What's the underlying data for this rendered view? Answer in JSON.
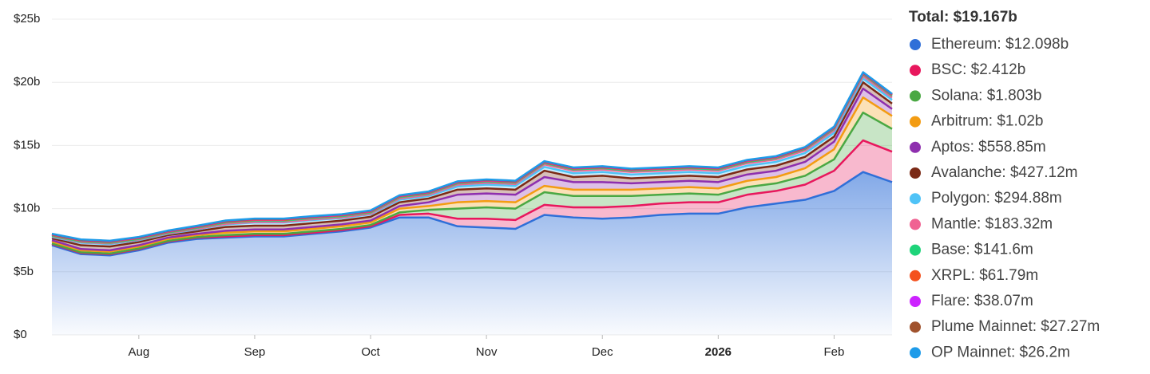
{
  "chart_data": {
    "type": "stacked-area",
    "categories": [
      null,
      null,
      null,
      "Aug",
      null,
      null,
      null,
      "Sep",
      null,
      null,
      null,
      "Oct",
      null,
      null,
      null,
      "Nov",
      null,
      null,
      null,
      "Dec",
      null,
      null,
      null,
      "2026",
      null,
      null,
      null,
      "Feb",
      null,
      null
    ],
    "ylim": [
      0,
      25
    ],
    "yticks": [
      {
        "value": 0,
        "label": "$0"
      },
      {
        "value": 5,
        "label": "$5b"
      },
      {
        "value": 10,
        "label": "$10b"
      },
      {
        "value": 15,
        "label": "$15b"
      },
      {
        "value": 20,
        "label": "$20b"
      },
      {
        "value": 25,
        "label": "$25b"
      }
    ],
    "grid": true,
    "total_label": "Total: $19.167b",
    "series": [
      {
        "name": "Ethereum",
        "legend_label": "$12.098b",
        "color": "#2f6fd8",
        "values": [
          7.1,
          6.4,
          6.3,
          6.7,
          7.3,
          7.6,
          7.7,
          7.8,
          7.8,
          8.0,
          8.2,
          8.5,
          9.3,
          9.3,
          8.6,
          8.5,
          8.4,
          9.5,
          9.3,
          9.2,
          9.3,
          9.5,
          9.6,
          9.6,
          10.1,
          10.4,
          10.7,
          11.4,
          12.9,
          12.098
        ]
      },
      {
        "name": "BSC",
        "legend_label": "$2.412b",
        "color": "#e8175d",
        "values": [
          0.1,
          0.1,
          0.1,
          0.1,
          0.1,
          0.1,
          0.1,
          0.1,
          0.1,
          0.1,
          0.1,
          0.1,
          0.2,
          0.3,
          0.6,
          0.7,
          0.7,
          0.8,
          0.8,
          0.9,
          0.9,
          0.9,
          0.9,
          0.9,
          1.0,
          1.0,
          1.2,
          1.6,
          2.5,
          2.412
        ]
      },
      {
        "name": "Solana",
        "legend_label": "$1.803b",
        "color": "#4aa843",
        "values": [
          0.05,
          0.05,
          0.05,
          0.05,
          0.05,
          0.05,
          0.1,
          0.1,
          0.1,
          0.1,
          0.1,
          0.1,
          0.2,
          0.3,
          0.8,
          0.9,
          0.9,
          1.0,
          0.9,
          0.9,
          0.8,
          0.7,
          0.7,
          0.6,
          0.6,
          0.6,
          0.7,
          0.9,
          2.2,
          1.803
        ]
      },
      {
        "name": "Arbitrum",
        "legend_label": "$1.02b",
        "color": "#f39c12",
        "values": [
          0.15,
          0.15,
          0.15,
          0.15,
          0.15,
          0.15,
          0.2,
          0.2,
          0.2,
          0.2,
          0.2,
          0.2,
          0.3,
          0.3,
          0.5,
          0.5,
          0.5,
          0.5,
          0.5,
          0.5,
          0.5,
          0.5,
          0.5,
          0.5,
          0.5,
          0.5,
          0.6,
          0.8,
          1.2,
          1.02
        ]
      },
      {
        "name": "Aptos",
        "legend_label": "$558.85m",
        "color": "#8e2fae",
        "values": [
          0.1,
          0.1,
          0.1,
          0.1,
          0.1,
          0.1,
          0.15,
          0.15,
          0.15,
          0.15,
          0.15,
          0.15,
          0.2,
          0.3,
          0.6,
          0.6,
          0.6,
          0.7,
          0.6,
          0.6,
          0.5,
          0.5,
          0.5,
          0.5,
          0.5,
          0.5,
          0.5,
          0.6,
          0.7,
          0.55885
        ]
      },
      {
        "name": "Avalanche",
        "legend_label": "$427.12m",
        "color": "#7b2a16",
        "values": [
          0.15,
          0.3,
          0.3,
          0.25,
          0.2,
          0.2,
          0.3,
          0.3,
          0.3,
          0.3,
          0.3,
          0.3,
          0.3,
          0.3,
          0.4,
          0.4,
          0.4,
          0.5,
          0.4,
          0.5,
          0.4,
          0.4,
          0.4,
          0.4,
          0.4,
          0.4,
          0.4,
          0.4,
          0.5,
          0.42712
        ]
      },
      {
        "name": "Polygon",
        "legend_label": "$294.88m",
        "color": "#4fc3f7",
        "values": [
          0.1,
          0.2,
          0.2,
          0.15,
          0.1,
          0.15,
          0.2,
          0.25,
          0.25,
          0.25,
          0.2,
          0.2,
          0.2,
          0.2,
          0.25,
          0.3,
          0.3,
          0.3,
          0.3,
          0.3,
          0.3,
          0.3,
          0.3,
          0.3,
          0.3,
          0.3,
          0.3,
          0.3,
          0.3,
          0.29488
        ]
      },
      {
        "name": "Mantle",
        "legend_label": "$183.32m",
        "color": "#f06292",
        "values": [
          0.05,
          0.05,
          0.05,
          0.05,
          0.05,
          0.05,
          0.05,
          0.05,
          0.05,
          0.05,
          0.05,
          0.05,
          0.1,
          0.1,
          0.15,
          0.15,
          0.15,
          0.2,
          0.2,
          0.2,
          0.2,
          0.2,
          0.2,
          0.2,
          0.2,
          0.2,
          0.2,
          0.2,
          0.2,
          0.18332
        ]
      },
      {
        "name": "Base",
        "legend_label": "$141.6m",
        "color": "#1ed47a",
        "values": [
          0.05,
          0.05,
          0.05,
          0.05,
          0.05,
          0.08,
          0.1,
          0.1,
          0.1,
          0.1,
          0.1,
          0.1,
          0.1,
          0.1,
          0.1,
          0.1,
          0.1,
          0.1,
          0.1,
          0.1,
          0.1,
          0.1,
          0.1,
          0.1,
          0.1,
          0.1,
          0.12,
          0.13,
          0.14,
          0.1416
        ]
      },
      {
        "name": "XRPL",
        "legend_label": "$61.79m",
        "color": "#f4511e",
        "values": [
          0.06,
          0.06,
          0.06,
          0.06,
          0.06,
          0.06,
          0.06,
          0.06,
          0.06,
          0.06,
          0.06,
          0.06,
          0.06,
          0.06,
          0.06,
          0.06,
          0.06,
          0.06,
          0.06,
          0.06,
          0.06,
          0.06,
          0.06,
          0.06,
          0.06,
          0.06,
          0.06,
          0.06,
          0.06,
          0.06179
        ]
      },
      {
        "name": "Flare",
        "legend_label": "$38.07m",
        "color": "#cc22ff",
        "values": [
          0.04,
          0.04,
          0.04,
          0.04,
          0.04,
          0.04,
          0.04,
          0.04,
          0.04,
          0.04,
          0.04,
          0.04,
          0.04,
          0.04,
          0.04,
          0.04,
          0.04,
          0.04,
          0.04,
          0.04,
          0.04,
          0.04,
          0.04,
          0.04,
          0.04,
          0.04,
          0.04,
          0.04,
          0.04,
          0.03807
        ]
      },
      {
        "name": "Plume Mainnet",
        "legend_label": "$27.27m",
        "color": "#a0522d",
        "values": [
          0.03,
          0.03,
          0.03,
          0.03,
          0.03,
          0.03,
          0.03,
          0.03,
          0.03,
          0.03,
          0.03,
          0.03,
          0.03,
          0.03,
          0.03,
          0.03,
          0.03,
          0.03,
          0.03,
          0.03,
          0.03,
          0.03,
          0.03,
          0.03,
          0.03,
          0.03,
          0.03,
          0.03,
          0.03,
          0.02727
        ]
      },
      {
        "name": "OP Mainnet",
        "legend_label": "$26.2m",
        "color": "#1e9be9",
        "values": [
          0.03,
          0.03,
          0.03,
          0.03,
          0.03,
          0.03,
          0.03,
          0.03,
          0.03,
          0.03,
          0.03,
          0.03,
          0.03,
          0.03,
          0.03,
          0.03,
          0.03,
          0.03,
          0.03,
          0.03,
          0.03,
          0.03,
          0.03,
          0.03,
          0.03,
          0.03,
          0.03,
          0.03,
          0.03,
          0.0262
        ]
      }
    ]
  }
}
